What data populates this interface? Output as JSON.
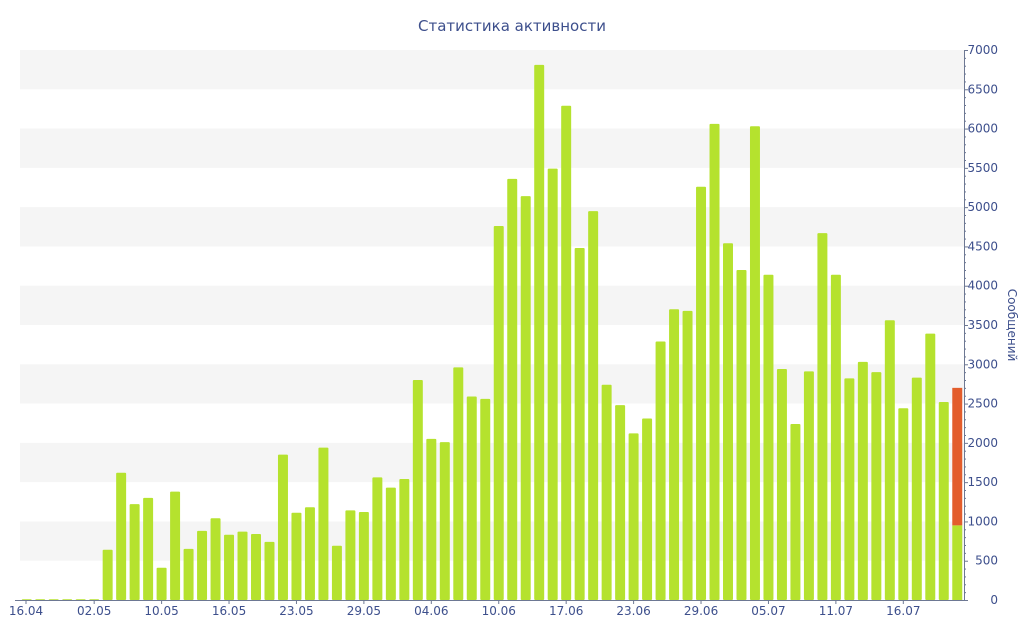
{
  "chart_data": {
    "type": "bar",
    "title": "Статистика активности",
    "ylabel": "Сообщений",
    "xlabel": "",
    "ylim": [
      0,
      7000
    ],
    "y_ticks": [
      0,
      500,
      1000,
      1500,
      2000,
      2500,
      3000,
      3500,
      4000,
      4500,
      5000,
      5500,
      6000,
      6500,
      7000
    ],
    "y_axis_side": "right",
    "grid": "alternating horizontal bands",
    "x_tick_labels": [
      {
        "label": "16.04",
        "index": 0
      },
      {
        "label": "02.05",
        "index": 5
      },
      {
        "label": "10.05",
        "index": 10
      },
      {
        "label": "16.05",
        "index": 15
      },
      {
        "label": "23.05",
        "index": 20
      },
      {
        "label": "29.05",
        "index": 25
      },
      {
        "label": "04.06",
        "index": 30
      },
      {
        "label": "10.06",
        "index": 35
      },
      {
        "label": "17.06",
        "index": 40
      },
      {
        "label": "23.06",
        "index": 45
      },
      {
        "label": "29.06",
        "index": 50
      },
      {
        "label": "05.07",
        "index": 55
      },
      {
        "label": "11.07",
        "index": 60
      },
      {
        "label": "16.07",
        "index": 65
      }
    ],
    "values": [
      10,
      10,
      10,
      10,
      10,
      10,
      640,
      1620,
      1220,
      1300,
      410,
      1380,
      650,
      880,
      1040,
      830,
      870,
      840,
      740,
      1850,
      1110,
      1180,
      1940,
      690,
      1140,
      1120,
      1560,
      1430,
      1540,
      2800,
      2050,
      2010,
      2960,
      2590,
      2560,
      4760,
      5360,
      5140,
      6810,
      5490,
      6290,
      4480,
      4950,
      2740,
      2480,
      2120,
      2310,
      3290,
      3700,
      3680,
      5260,
      6060,
      4540,
      4200,
      6030,
      4140,
      2940,
      2240,
      2910,
      4670,
      4140,
      2820,
      3030,
      2900,
      3560,
      2440,
      2830,
      3390,
      2520,
      2700
    ],
    "highlight": {
      "index": 69,
      "color": "#e35d2c",
      "start_value": 950
    },
    "colors": {
      "bar": "#b5e22e",
      "highlight": "#e35d2c",
      "text": "#3d4f8c",
      "band": "#f5f5f5",
      "axis": "#6d7893"
    }
  }
}
